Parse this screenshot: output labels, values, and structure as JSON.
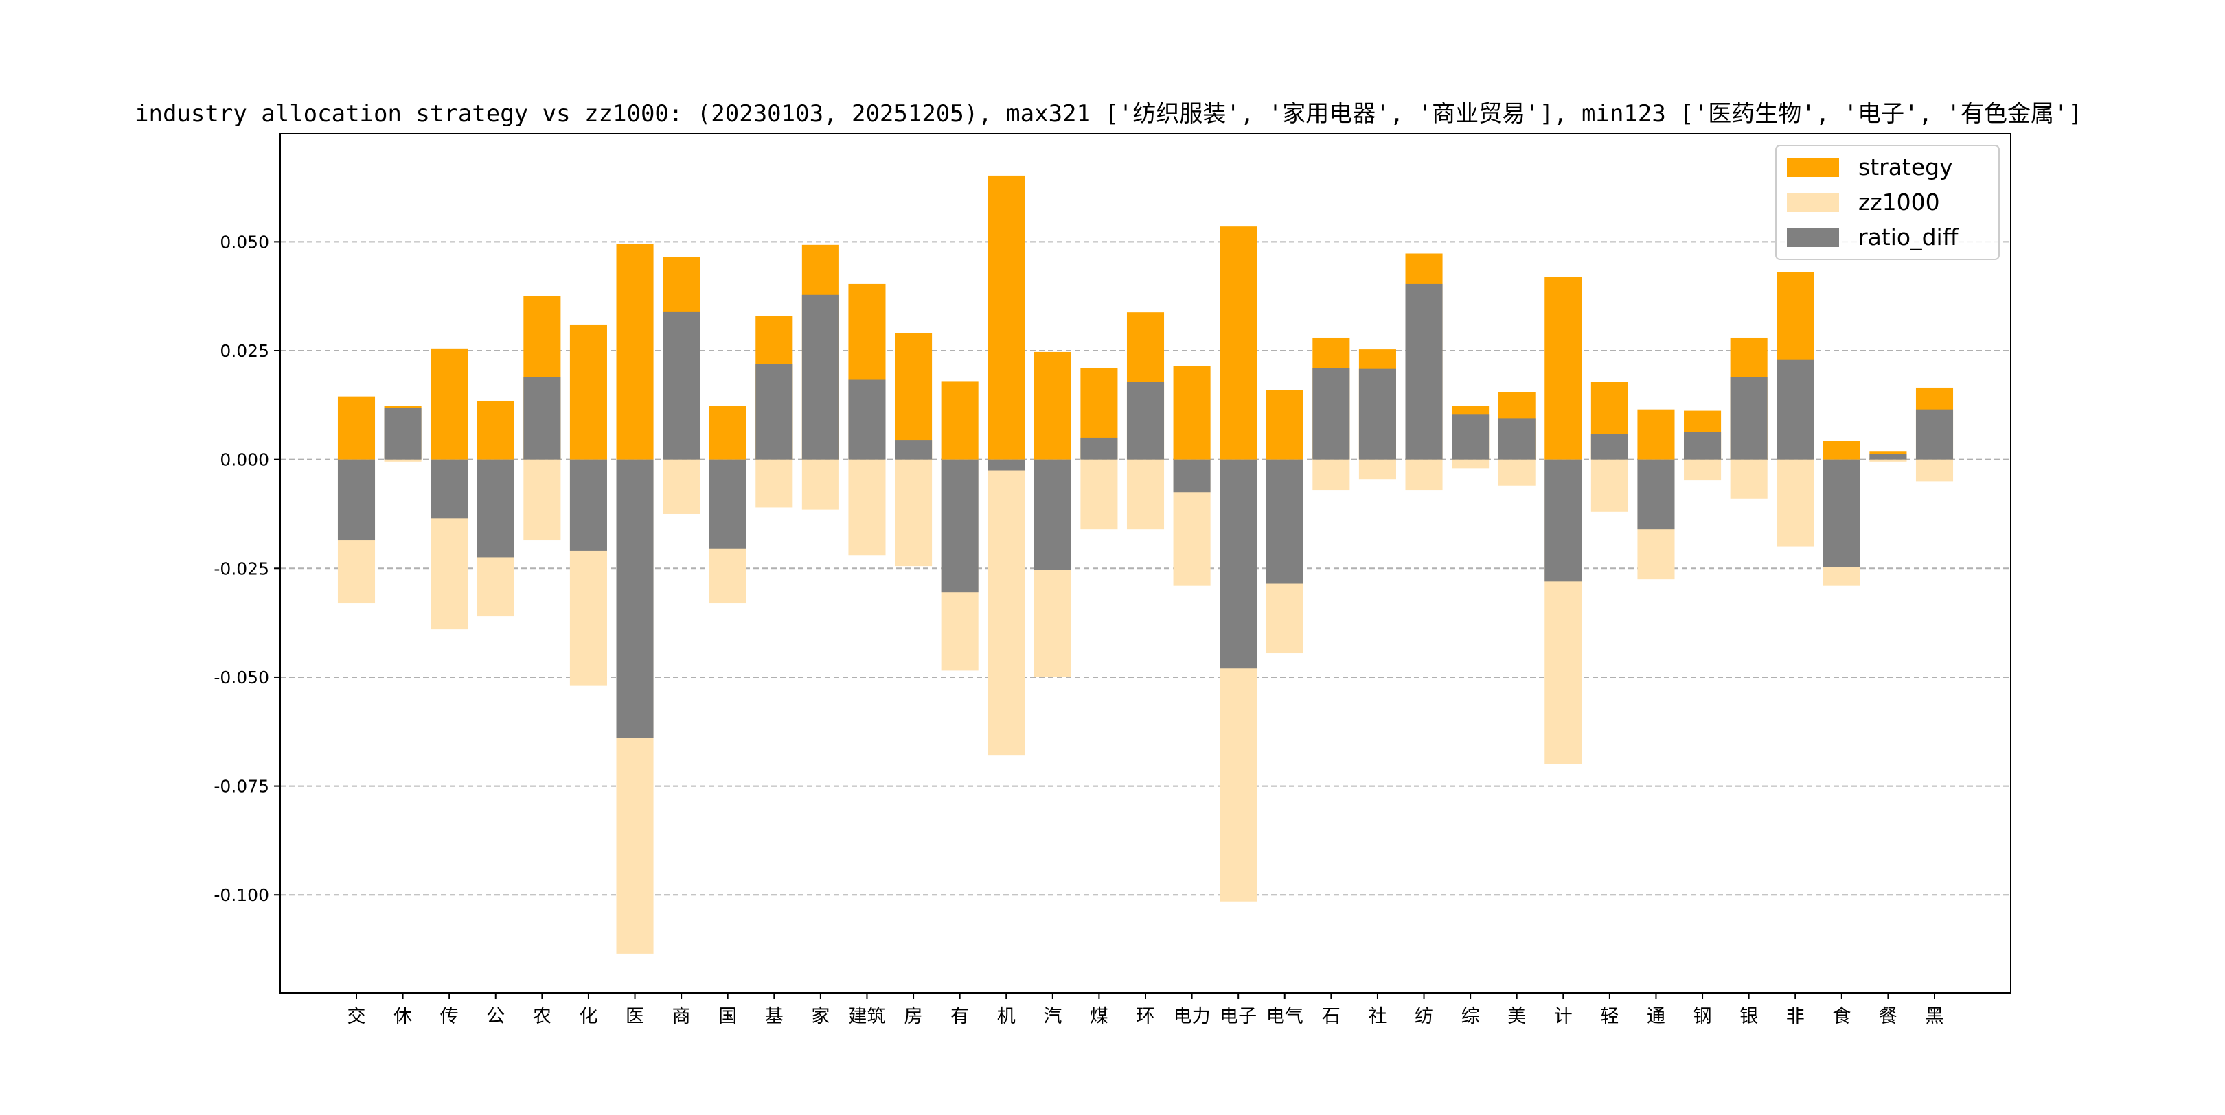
{
  "chart_data": {
    "type": "bar",
    "title": "industry allocation strategy vs zz1000: (20230103, 20251205), max321 ['纺织服装', '家用电器', '商业贸易'], min123 ['医药生物', '电子', '有色金属']",
    "xlabel": "",
    "ylabel": "",
    "ylim": [
      -0.1225,
      0.0748
    ],
    "yticks": [
      -0.1,
      -0.075,
      -0.05,
      -0.025,
      0.0,
      0.025,
      0.05
    ],
    "ytick_labels": [
      "-0.100",
      "-0.075",
      "-0.050",
      "-0.025",
      "0.000",
      "0.025",
      "0.050"
    ],
    "grid": "y, dashed",
    "legend_position": "top-right",
    "categories": [
      "交",
      "休",
      "传",
      "公",
      "农",
      "化",
      "医",
      "商",
      "国",
      "基",
      "家",
      "建筑",
      "房",
      "有",
      "机",
      "汽",
      "煤",
      "环",
      "电力",
      "电子",
      "电气",
      "石",
      "社",
      "纺",
      "综",
      "美",
      "计",
      "轻",
      "通",
      "钢",
      "银",
      "非",
      "食",
      "餐",
      "黑"
    ],
    "series": [
      {
        "name": "strategy",
        "color": "#FFA500",
        "values": [
          0.0145,
          0.0123,
          0.0255,
          0.0135,
          0.0375,
          0.031,
          0.0495,
          0.0465,
          0.0123,
          0.033,
          0.0493,
          0.0403,
          0.029,
          0.018,
          0.0652,
          0.0247,
          0.021,
          0.0338,
          0.0215,
          0.0535,
          0.016,
          0.028,
          0.0253,
          0.0473,
          0.0123,
          0.0155,
          0.042,
          0.0178,
          0.0115,
          0.0112,
          0.028,
          0.043,
          0.0043,
          0.0018,
          0.0165
        ]
      },
      {
        "name": "zz1000",
        "color": "#FFE2B2",
        "values": [
          -0.033,
          -0.0005,
          -0.039,
          -0.036,
          -0.0185,
          -0.052,
          -0.1135,
          -0.0125,
          -0.033,
          -0.011,
          -0.0115,
          -0.022,
          -0.0245,
          -0.0485,
          -0.068,
          -0.05,
          -0.016,
          -0.016,
          -0.029,
          -0.1015,
          -0.0445,
          -0.007,
          -0.0045,
          -0.007,
          -0.002,
          -0.006,
          -0.07,
          -0.012,
          -0.0275,
          -0.0048,
          -0.009,
          -0.02,
          -0.029,
          -0.0005,
          -0.005
        ]
      },
      {
        "name": "ratio_diff",
        "color": "#808080",
        "values": [
          -0.0185,
          0.0118,
          -0.0135,
          -0.0225,
          0.019,
          -0.021,
          -0.064,
          0.034,
          -0.0205,
          0.022,
          0.0378,
          0.0183,
          0.0045,
          -0.0305,
          -0.0025,
          -0.0253,
          0.005,
          0.0178,
          -0.0075,
          -0.048,
          -0.0285,
          0.021,
          0.0208,
          0.0403,
          0.0103,
          0.0095,
          -0.028,
          0.0058,
          -0.016,
          0.0063,
          0.019,
          0.023,
          -0.0247,
          0.0013,
          0.0115
        ]
      }
    ]
  }
}
